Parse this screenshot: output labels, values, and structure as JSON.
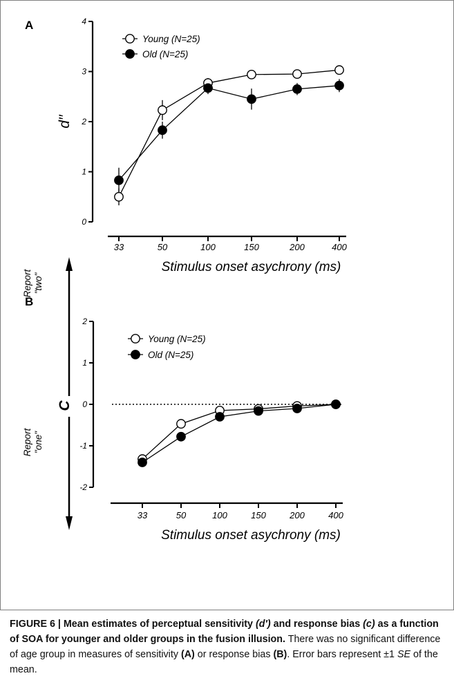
{
  "chart_data": [
    {
      "panel_label": "A",
      "type": "line",
      "ylabel": "d′′",
      "xlabel": "Stimulus onset asychrony (ms)",
      "categories": [
        "33",
        "50",
        "100",
        "150",
        "200",
        "400"
      ],
      "ylim": [
        0,
        4
      ],
      "yticks": [
        "0",
        "1",
        "2",
        "3",
        "4"
      ],
      "legend_position": "top-left",
      "series": [
        {
          "name": "Young (N=25)",
          "marker": "open-circle",
          "values": [
            0.5,
            2.23,
            2.77,
            2.94,
            2.95,
            3.03
          ],
          "errors": [
            0.17,
            0.2,
            0.1,
            0.06,
            0.07,
            0.06
          ]
        },
        {
          "name": "Old (N=25)",
          "marker": "filled-circle",
          "values": [
            0.83,
            1.83,
            2.67,
            2.45,
            2.65,
            2.72
          ],
          "errors": [
            0.25,
            0.17,
            0.12,
            0.21,
            0.12,
            0.13
          ]
        }
      ]
    },
    {
      "panel_label": "B",
      "type": "line",
      "ylabel": "C",
      "xlabel": "Stimulus onset asychrony (ms)",
      "categories": [
        "33",
        "50",
        "100",
        "150",
        "200",
        "400"
      ],
      "ylim": [
        -2,
        2
      ],
      "yticks": [
        "-2",
        "-1",
        "0",
        "1",
        "2"
      ],
      "reference_line": 0,
      "legend_position": "top-left",
      "annotations": {
        "up_report": "Report",
        "up_choice": "\"two\"",
        "down_report": "Report",
        "down_choice": "\"one\""
      },
      "series": [
        {
          "name": "Young (N=25)",
          "marker": "open-circle",
          "values": [
            -1.32,
            -0.47,
            -0.15,
            -0.11,
            -0.04,
            0.0
          ]
        },
        {
          "name": "Old (N=25)",
          "marker": "filled-circle",
          "values": [
            -1.4,
            -0.78,
            -0.3,
            -0.16,
            -0.1,
            0.0
          ]
        }
      ]
    }
  ],
  "caption": {
    "bold_lead_1": "FIGURE 6 | Mean estimates of perceptual sensitivity ",
    "bold_italic_1": "(d′)",
    "bold_lead_2": " and response bias ",
    "bold_italic_2": "(c)",
    "bold_lead_3": " as a function of SOA for younger and older groups in the fusion illusion.",
    "text_1": " There was no significant difference of age group in measures of sensitivity ",
    "ref_a": "(A)",
    "text_2": " or response bias ",
    "ref_b": "(B)",
    "text_3": ". Error bars represent ±1 ",
    "italic_se": "SE",
    "text_4": " of the mean."
  }
}
